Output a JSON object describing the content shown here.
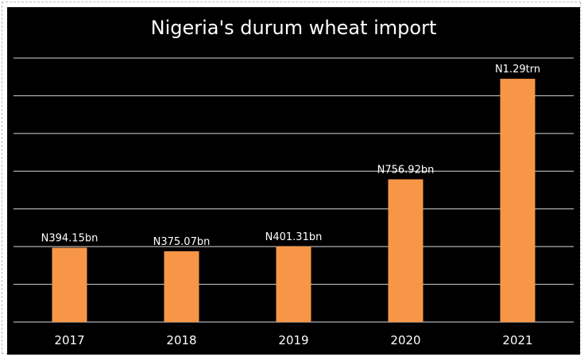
{
  "chart_data": {
    "type": "bar",
    "title": "Nigeria's durum wheat import",
    "categories": [
      "2017",
      "2018",
      "2019",
      "2020",
      "2021"
    ],
    "values": [
      394.15,
      375.07,
      401.31,
      756.92,
      1290
    ],
    "data_labels": [
      "N394.15bn",
      "N375.07bn",
      "N401.31bn",
      "N756.92bn",
      "N1.29trn"
    ],
    "unit": "N billion",
    "ylim": [
      0,
      1400
    ],
    "grid": true,
    "bar_color": "#f79646",
    "background": "#000000",
    "text_color": "#ffffff",
    "grid_color": "#d9d9d9"
  }
}
